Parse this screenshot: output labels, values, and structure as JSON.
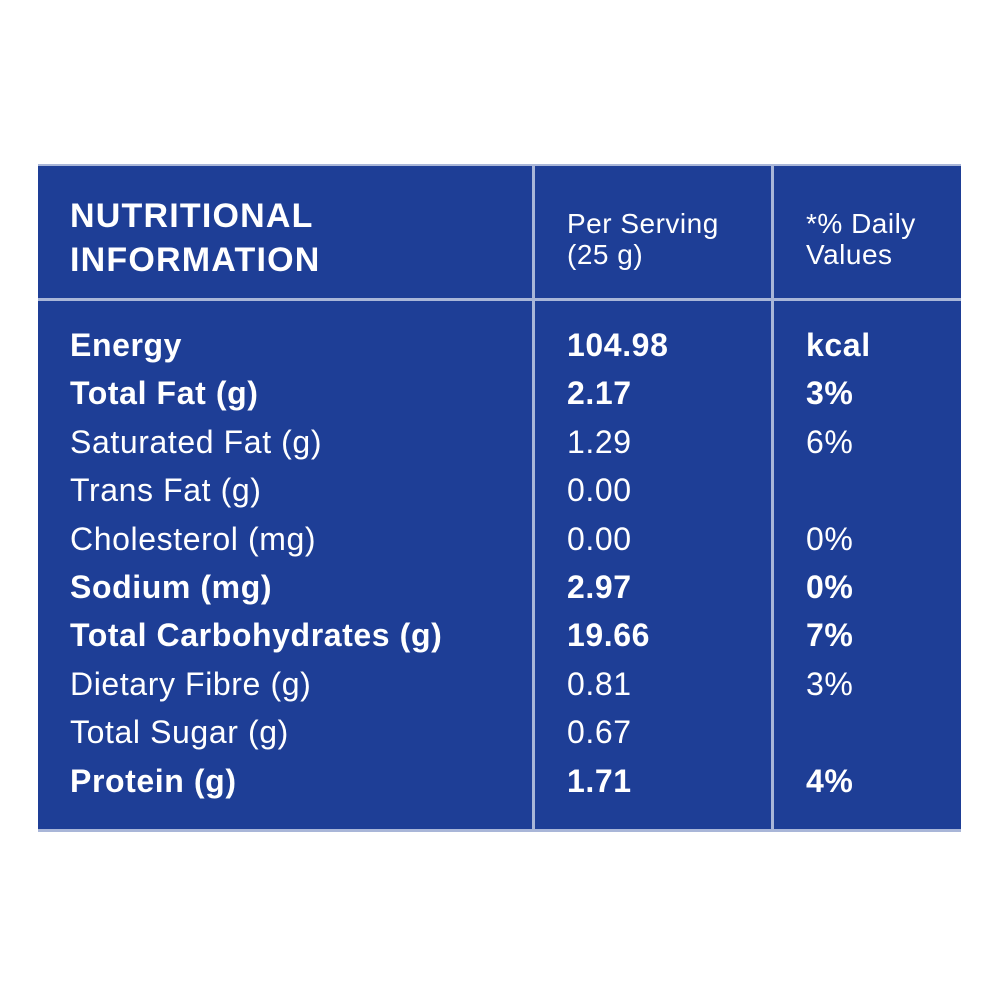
{
  "header": {
    "title_line1": "NUTRITIONAL",
    "title_line2": "INFORMATION",
    "col_serving_line1": "Per Serving",
    "col_serving_line2": "(25 g)",
    "col_dv_line1": "*% Daily",
    "col_dv_line2": "Values"
  },
  "rows": [
    {
      "nutrient": "Energy",
      "serving": "104.98",
      "dv": "kcal",
      "bold": true
    },
    {
      "nutrient": "Total Fat (g)",
      "serving": "2.17",
      "dv": "3%",
      "bold": true
    },
    {
      "nutrient": "Saturated Fat (g)",
      "serving": "1.29",
      "dv": "6%",
      "bold": false
    },
    {
      "nutrient": "Trans Fat (g)",
      "serving": "0.00",
      "dv": "",
      "bold": false
    },
    {
      "nutrient": "Cholesterol (mg)",
      "serving": "0.00",
      "dv": "0%",
      "bold": false
    },
    {
      "nutrient": "Sodium (mg)",
      "serving": "2.97",
      "dv": "0%",
      "bold": true
    },
    {
      "nutrient": "Total Carbohydrates (g)",
      "serving": "19.66",
      "dv": "7%",
      "bold": true
    },
    {
      "nutrient": "Dietary Fibre (g)",
      "serving": "0.81",
      "dv": "3%",
      "bold": false
    },
    {
      "nutrient": "Total Sugar (g)",
      "serving": "0.67",
      "dv": "",
      "bold": false
    },
    {
      "nutrient": "Protein (g)",
      "serving": "1.71",
      "dv": "4%",
      "bold": true
    }
  ],
  "colors": {
    "background": "#1e3e96",
    "text": "#ffffff",
    "divider": "#a9b6d8"
  }
}
